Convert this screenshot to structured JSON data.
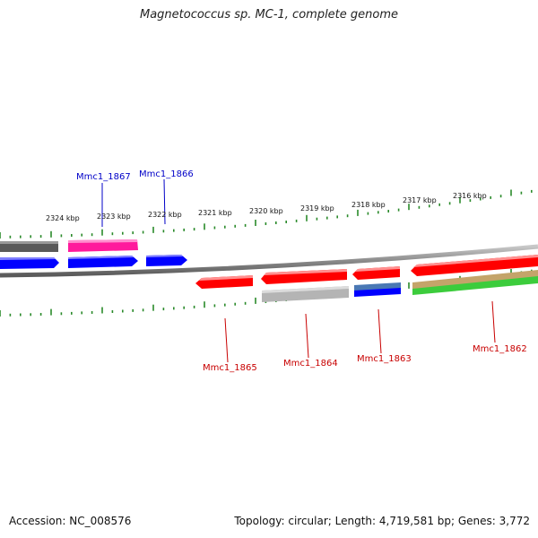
{
  "title": "Magnetococcus sp. MC-1, complete genome",
  "footer": {
    "accession": "Accession: NC_008576",
    "summary": "Topology: circular; Length: 4,719,581 bp; Genes: 3,772"
  },
  "colors": {
    "backbone": "#909090",
    "tick": "#2a8a2a",
    "forward_label": "#0000c8",
    "reverse_label": "#c80000",
    "cds_red": "#ff0000",
    "cds_blue": "#0000ff",
    "cds_pink": "#ff1a9c",
    "cds_dark_gray": "#5a5a5a",
    "cds_light_gray": "#b4b4b4",
    "cds_steel_blue": "#4a78b4",
    "cds_tan": "#c4a46a",
    "cds_green": "#3ccc3c"
  },
  "map": {
    "scale_labels": [
      "2324 kbp",
      "2323 kbp",
      "2322 kbp",
      "2321 kbp",
      "2320 kbp",
      "2319 kbp",
      "2318 kbp",
      "2317 kbp",
      "2316 kbp"
    ],
    "gene_labels": [
      {
        "text": "Mmc1_1867",
        "strand": "forward"
      },
      {
        "text": "Mmc1_1866",
        "strand": "forward"
      },
      {
        "text": "Mmc1_1865",
        "strand": "reverse"
      },
      {
        "text": "Mmc1_1864",
        "strand": "reverse"
      },
      {
        "text": "Mmc1_1863",
        "strand": "reverse"
      },
      {
        "text": "Mmc1_1862",
        "strand": "reverse"
      }
    ]
  }
}
